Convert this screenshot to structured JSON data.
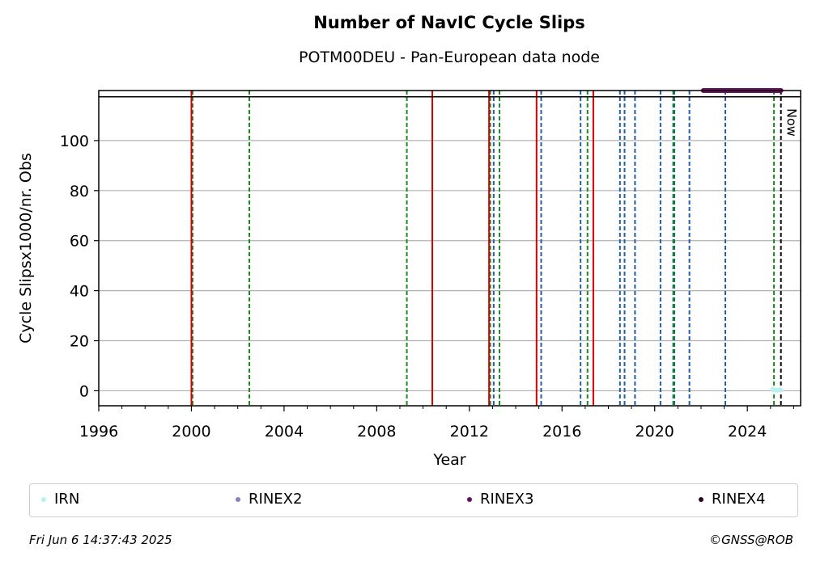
{
  "header": {
    "title": "Number of NavIC Cycle Slips",
    "subtitle": "POTM00DEU - Pan-European data node"
  },
  "footer": {
    "timestamp": "Fri Jun  6 14:37:43 2025",
    "copyright": "©GNSS@ROB"
  },
  "chart_data": {
    "type": "scatter",
    "title": "Number of NavIC Cycle Slips",
    "subtitle": "POTM00DEU - Pan-European data node",
    "xlabel": "Year",
    "ylabel": "Cycle Slipsx1000/nr. Obs",
    "xlim": [
      1996,
      2026.3
    ],
    "ylim": [
      -6,
      120
    ],
    "x_ticks": [
      1996,
      2000,
      2004,
      2008,
      2012,
      2016,
      2020,
      2024
    ],
    "y_ticks": [
      0,
      20,
      40,
      60,
      80,
      100
    ],
    "grid": "horizontal",
    "legend_position": "bottom",
    "series": [
      {
        "name": "IRN",
        "color": "#b8f2f0",
        "points": [
          [
            2025.1,
            0.5
          ],
          [
            2025.2,
            0.3
          ],
          [
            2025.3,
            0.2
          ],
          [
            2025.4,
            0.4
          ],
          [
            2025.45,
            0.2
          ]
        ]
      },
      {
        "name": "RINEX2",
        "color": "#8c7fbf",
        "points": []
      },
      {
        "name": "RINEX3",
        "color": "#6a0f5f",
        "segment": {
          "x_start": 2022.1,
          "x_end": 2025.45,
          "y": 120
        }
      },
      {
        "name": "RINEX4",
        "color": "#2b0621",
        "points": []
      }
    ],
    "reference_line_y": 117.5,
    "vlines_red_solid": [
      2000.0,
      2010.4,
      2012.85,
      2014.9,
      2017.35
    ],
    "vlines_green_dashed": [
      2000.05,
      2002.5,
      2009.3,
      2012.9,
      2013.3,
      2017.1,
      2020.8,
      2025.15
    ],
    "vlines_blue_dashed": [
      2013.05,
      2015.1,
      2016.8,
      2018.5,
      2018.7,
      2019.15,
      2020.25,
      2020.85,
      2021.5,
      2023.05
    ],
    "now_line": {
      "x": 2025.45,
      "label": "Now"
    }
  }
}
